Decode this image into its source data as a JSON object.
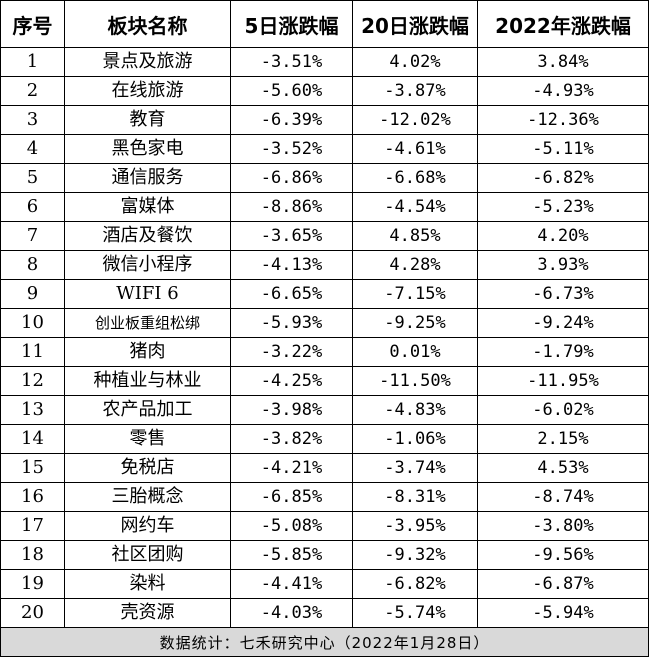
{
  "table": {
    "headers": [
      "序号",
      "板块名称",
      "5日涨跌幅",
      "20日涨跌幅",
      "2022年涨跌幅"
    ],
    "rows": [
      [
        "1",
        "景点及旅游",
        "-3.51%",
        "4.02%",
        "3.84%"
      ],
      [
        "2",
        "在线旅游",
        "-5.60%",
        "-3.87%",
        "-4.93%"
      ],
      [
        "3",
        "教育",
        "-6.39%",
        "-12.02%",
        "-12.36%"
      ],
      [
        "4",
        "黑色家电",
        "-3.52%",
        "-4.61%",
        "-5.11%"
      ],
      [
        "5",
        "通信服务",
        "-6.86%",
        "-6.68%",
        "-6.82%"
      ],
      [
        "6",
        "富媒体",
        "-8.86%",
        "-4.54%",
        "-5.23%"
      ],
      [
        "7",
        "酒店及餐饮",
        "-3.65%",
        "4.85%",
        "4.20%"
      ],
      [
        "8",
        "微信小程序",
        "-4.13%",
        "4.28%",
        "3.93%"
      ],
      [
        "9",
        "WIFI 6",
        "-6.65%",
        "-7.15%",
        "-6.73%"
      ],
      [
        "10",
        "创业板重组松绑",
        "-5.93%",
        "-9.25%",
        "-9.24%"
      ],
      [
        "11",
        "猪肉",
        "-3.22%",
        "0.01%",
        "-1.79%"
      ],
      [
        "12",
        "种植业与林业",
        "-4.25%",
        "-11.50%",
        "-11.95%"
      ],
      [
        "13",
        "农产品加工",
        "-3.98%",
        "-4.83%",
        "-6.02%"
      ],
      [
        "14",
        "零售",
        "-3.82%",
        "-1.06%",
        "2.15%"
      ],
      [
        "15",
        "免税店",
        "-4.21%",
        "-3.74%",
        "4.53%"
      ],
      [
        "16",
        "三胎概念",
        "-6.85%",
        "-8.31%",
        "-8.74%"
      ],
      [
        "17",
        "网约车",
        "-5.08%",
        "-3.95%",
        "-3.80%"
      ],
      [
        "18",
        "社区团购",
        "-5.85%",
        "-9.32%",
        "-9.56%"
      ],
      [
        "19",
        "染料",
        "-4.41%",
        "-6.82%",
        "-6.87%"
      ],
      [
        "20",
        "壳资源",
        "-4.03%",
        "-5.74%",
        "-5.94%"
      ]
    ],
    "footer": "数据统计：七禾研究中心（2022年1月28日）"
  },
  "colors": {
    "border": "#000000",
    "footer_background": "#d9d9d9",
    "text": "#000000"
  }
}
